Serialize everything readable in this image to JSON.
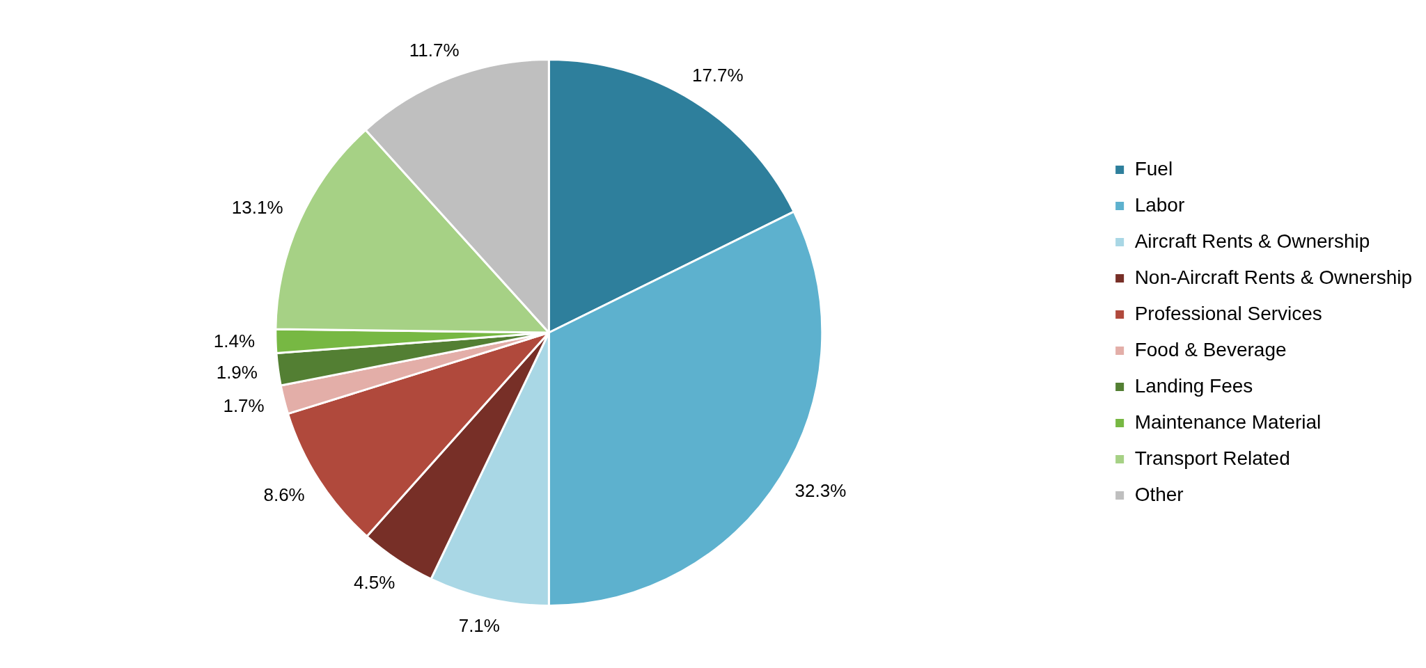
{
  "chart_data": {
    "type": "pie",
    "categories": [
      "Fuel",
      "Labor",
      "Aircraft Rents & Ownership",
      "Non-Aircraft Rents & Ownership",
      "Professional Services",
      "Food & Beverage",
      "Landing Fees",
      "Maintenance Material",
      "Transport Related",
      "Other"
    ],
    "values": [
      17.7,
      32.3,
      7.1,
      4.5,
      8.6,
      1.7,
      1.9,
      1.4,
      13.1,
      11.7
    ],
    "colors": [
      "#2e7f9c",
      "#5db1ce",
      "#a9d7e5",
      "#772f27",
      "#b0493c",
      "#e3aea8",
      "#537f33",
      "#77b843",
      "#a6d185",
      "#bfbfbf"
    ],
    "value_labels": [
      "17.7%",
      "32.3%",
      "7.1%",
      "4.5%",
      "8.6%",
      "1.7%",
      "1.9%",
      "1.4%",
      "13.1%",
      "11.7%"
    ],
    "legend": "right"
  }
}
